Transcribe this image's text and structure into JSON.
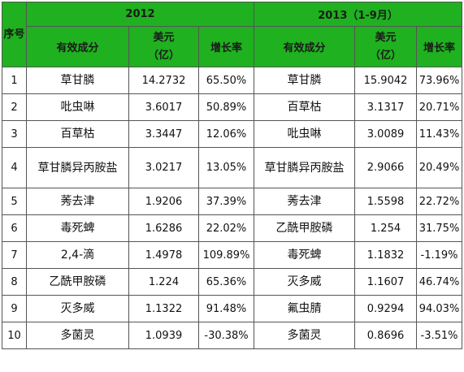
{
  "header": {
    "seq": "序号",
    "year1": "2012",
    "year2": "2013（1-9月）",
    "ingredient": "有效成分",
    "usd": "美元（亿）",
    "growth": "增长率"
  },
  "rows": [
    {
      "n": "1",
      "a": "草甘膦",
      "av": "14.2732",
      "ag": "65.50%",
      "b": "草甘膦",
      "bv": "15.9042",
      "bg": "73.96%"
    },
    {
      "n": "2",
      "a": "吡虫啉",
      "av": "3.6017",
      "ag": "50.89%",
      "b": "百草枯",
      "bv": "3.1317",
      "bg": "20.71%"
    },
    {
      "n": "3",
      "a": "百草枯",
      "av": "3.3447",
      "ag": "12.06%",
      "b": "吡虫啉",
      "bv": "3.0089",
      "bg": "11.43%"
    },
    {
      "n": "4",
      "a": "草甘膦异丙胺盐",
      "av": "3.0217",
      "ag": "13.05%",
      "b": "草甘膦异丙胺盐",
      "bv": "2.9066",
      "bg": "20.49%"
    },
    {
      "n": "5",
      "a": "莠去津",
      "av": "1.9206",
      "ag": "37.39%",
      "b": "莠去津",
      "bv": "1.5598",
      "bg": "22.72%"
    },
    {
      "n": "6",
      "a": "毒死蜱",
      "av": "1.6286",
      "ag": "22.02%",
      "b": "乙酰甲胺磷",
      "bv": "1.254",
      "bg": "31.75%"
    },
    {
      "n": "7",
      "a": "2,4-滴",
      "av": "1.4978",
      "ag": "109.89%",
      "b": "毒死蜱",
      "bv": "1.1832",
      "bg": "-1.19%"
    },
    {
      "n": "8",
      "a": "乙酰甲胺磷",
      "av": "1.224",
      "ag": "65.36%",
      "b": "灭多威",
      "bv": "1.1607",
      "bg": "46.74%"
    },
    {
      "n": "9",
      "a": "灭多威",
      "av": "1.1322",
      "ag": "91.48%",
      "b": "氟虫腈",
      "bv": "0.9294",
      "bg": "94.03%"
    },
    {
      "n": "10",
      "a": "多菌灵",
      "av": "1.0939",
      "ag": "-30.38%",
      "b": "多菌灵",
      "bv": "0.8696",
      "bg": "-3.51%"
    }
  ]
}
